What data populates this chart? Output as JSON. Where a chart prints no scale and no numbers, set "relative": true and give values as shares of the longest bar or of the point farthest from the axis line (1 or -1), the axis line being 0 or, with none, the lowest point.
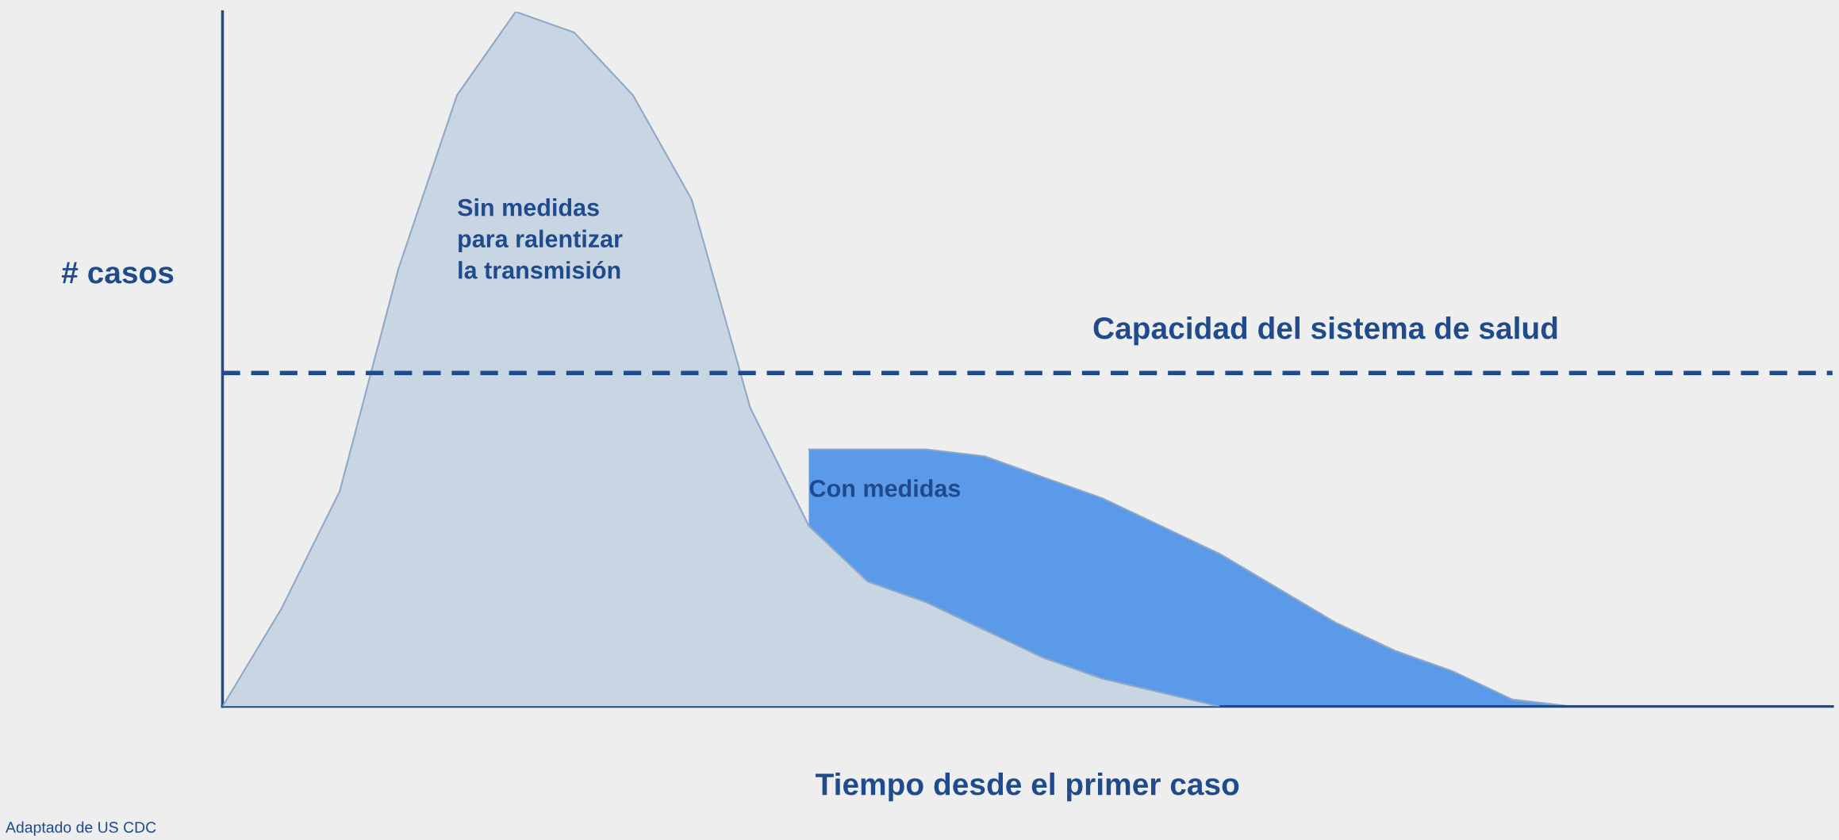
{
  "chart_data": {
    "type": "area",
    "relative": true,
    "xlabel": "Tiempo desde el primer caso",
    "ylabel": "# casos",
    "categories": [
      null,
      null,
      null,
      null,
      null,
      null,
      null,
      null,
      null,
      null,
      null,
      null,
      null,
      null,
      null,
      null,
      null,
      null,
      null,
      null,
      null,
      null,
      null,
      null,
      null,
      null,
      null,
      null
    ],
    "series": [
      {
        "name": "Con medidas",
        "color": "#5b9ae8",
        "values": [
          null,
          null,
          null,
          null,
          null,
          null,
          null,
          null,
          null,
          null,
          0.37,
          0.37,
          0.37,
          0.36,
          0.33,
          0.3,
          0.26,
          0.22,
          0.17,
          0.12,
          0.08,
          0.05,
          0.01,
          0,
          null,
          null,
          null,
          null
        ]
      },
      {
        "name": "Sin medidas\npara ralentizar\nla transmisión",
        "color": "#c8d5e3",
        "values": [
          0,
          0.14,
          0.31,
          0.63,
          0.88,
          1,
          0.97,
          0.88,
          0.73,
          0.43,
          0.26,
          0.18,
          0.15,
          0.11,
          0.07,
          0.04,
          0.02,
          0,
          null,
          null,
          null,
          null,
          null,
          null,
          null,
          null,
          null,
          null
        ]
      }
    ],
    "ref_lines": [
      {
        "axis": "y",
        "value": 0.48,
        "label": "Capacidad del sistema de salud",
        "color": "#1f4a8c",
        "line_style": "dashed"
      }
    ],
    "annotations": [
      "Adaptado de US CDC"
    ],
    "legend": false
  }
}
